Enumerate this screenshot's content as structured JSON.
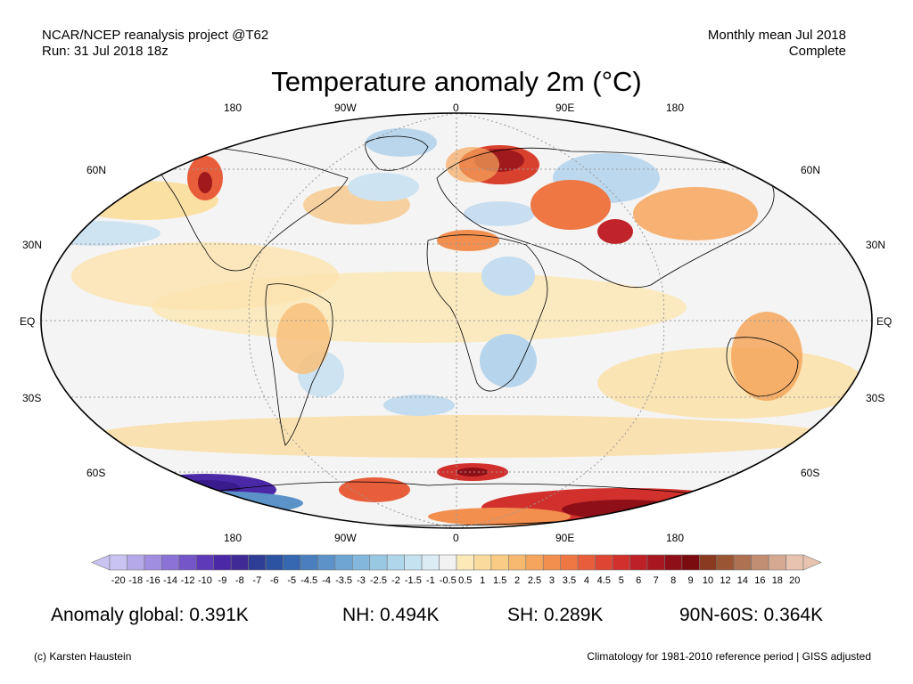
{
  "header": {
    "project": "NCAR/NCEP reanalysis project @T62",
    "run": "Run: 31 Jul 2018 18z",
    "period": "Monthly mean Jul 2018",
    "status": "Complete"
  },
  "title": "Temperature anomaly 2m (°C)",
  "axes": {
    "lon_top": [
      "180",
      "90W",
      "0",
      "90E",
      "180"
    ],
    "lon_bottom": [
      "180",
      "90W",
      "0",
      "90E",
      "180"
    ],
    "lat_left": [
      "60N",
      "30N",
      "EQ",
      "30S",
      "60S"
    ],
    "lat_right": [
      "60N",
      "30N",
      "EQ",
      "30S",
      "60S"
    ]
  },
  "colorbar": {
    "labels": [
      "-20",
      "-18",
      "-16",
      "-14",
      "-12",
      "-10",
      "-9",
      "-8",
      "-7",
      "-6",
      "-5",
      "-4.5",
      "-4",
      "-3.5",
      "-3",
      "-2.5",
      "-2",
      "-1.5",
      "-1",
      "-0.5",
      "0.5",
      "1",
      "1.5",
      "2",
      "2.5",
      "3",
      "3.5",
      "4",
      "4.5",
      "5",
      "6",
      "7",
      "8",
      "9",
      "10",
      "12",
      "14",
      "16",
      "18",
      "20"
    ],
    "colors": [
      "#c9c3f2",
      "#b6a9ea",
      "#a08ee0",
      "#8b72d6",
      "#7456c9",
      "#5e3ab8",
      "#4b28a6",
      "#3f2a96",
      "#2e3e96",
      "#2c52a2",
      "#3568b0",
      "#4a7fbd",
      "#5b93c8",
      "#6ea6d3",
      "#83b8dc",
      "#99c8e3",
      "#afd6ea",
      "#c5e2f0",
      "#dbecf5",
      "#f2f2f2",
      "#fbeab8",
      "#fbdb9d",
      "#f9cb84",
      "#f7b96f",
      "#f5a65c",
      "#f28f4f",
      "#ee7744",
      "#e85e3a",
      "#df4533",
      "#d1302c",
      "#bd2026",
      "#a81620",
      "#8e0f18",
      "#7a0c10",
      "#8b3a22",
      "#9a5634",
      "#ae7252",
      "#c28e72",
      "#d6aa92",
      "#e8c4b0"
    ]
  },
  "stats": {
    "global": "Anomaly global: 0.391K",
    "nh": "NH: 0.494K",
    "sh": "SH: 0.289K",
    "arctic": "90N-60S: 0.364K"
  },
  "footer": {
    "credit": "(c) Karsten Haustein",
    "note": "Climatology for 1981-2010 reference period | GISS adjusted"
  }
}
